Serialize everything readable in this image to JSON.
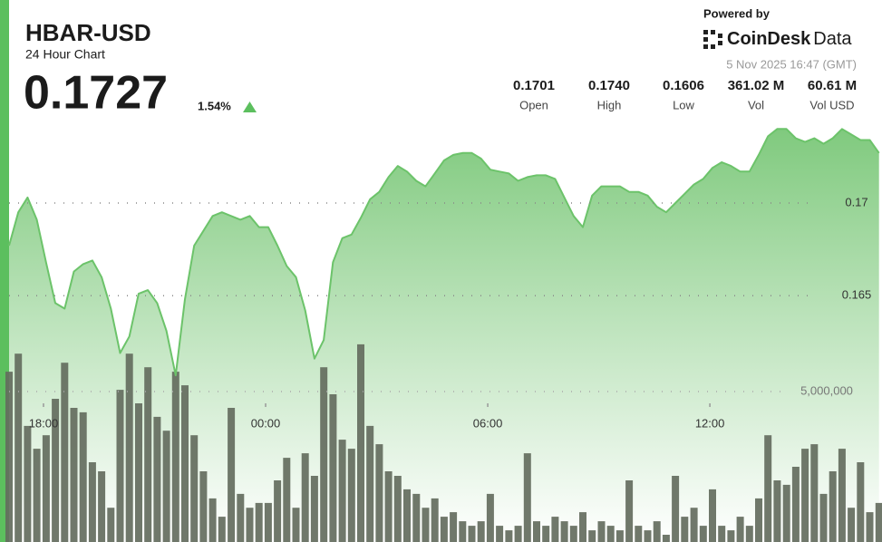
{
  "header": {
    "symbol": "HBAR-USD",
    "subtitle": "24 Hour Chart",
    "price": "0.1727",
    "change": "1.54%",
    "powered_by": "Powered by",
    "brand": "CoinDesk",
    "brand_suffix": "Data",
    "timestamp": "5 Nov 2025 16:47 (GMT)",
    "stats": [
      {
        "value": "0.1701",
        "label": "Open"
      },
      {
        "value": "0.1740",
        "label": "High"
      },
      {
        "value": "0.1606",
        "label": "Low"
      },
      {
        "value": "361.02 M",
        "label": "Vol"
      },
      {
        "value": "60.61 M",
        "label": "Vol USD"
      }
    ]
  },
  "chart_data": {
    "type": "line",
    "x": [
      17.07,
      17.32,
      17.57,
      17.82,
      18.07,
      18.32,
      18.57,
      18.82,
      19.07,
      19.32,
      19.57,
      19.82,
      20.07,
      20.32,
      20.57,
      20.82,
      21.07,
      21.32,
      21.57,
      21.82,
      22.07,
      22.32,
      22.57,
      22.82,
      23.07,
      23.32,
      23.57,
      23.82,
      24.07,
      24.32,
      24.57,
      24.82,
      25.07,
      25.32,
      25.57,
      25.82,
      26.07,
      26.32,
      26.57,
      26.82,
      27.07,
      27.32,
      27.57,
      27.82,
      28.07,
      28.32,
      28.57,
      28.82,
      29.07,
      29.32,
      29.57,
      29.82,
      30.07,
      30.32,
      30.57,
      30.82,
      31.07,
      31.32,
      31.57,
      31.82,
      32.07,
      32.32,
      32.57,
      32.82,
      33.07,
      33.32,
      33.57,
      33.82,
      34.07,
      34.32,
      34.57,
      34.82,
      35.07,
      35.32,
      35.57,
      35.82,
      36.07,
      36.32,
      36.57,
      36.82,
      37.07,
      37.32,
      37.57,
      37.82,
      38.07,
      38.32,
      38.57,
      38.82,
      39.07,
      39.32,
      39.57,
      39.82,
      40.07,
      40.32,
      40.57
    ],
    "xlim": [
      17.07,
      40.65
    ],
    "xticks": [
      {
        "value": 18,
        "label": "18:00"
      },
      {
        "value": 24,
        "label": "00:00"
      },
      {
        "value": 30,
        "label": "06:00"
      },
      {
        "value": 36,
        "label": "12:00"
      }
    ],
    "ylim": [
      0.1517,
      0.1746
    ],
    "yticks": [
      0.165,
      0.17
    ],
    "y2lim": [
      0,
      14100000
    ],
    "y2ticks": [
      {
        "value": 5000000,
        "label": "5,000,000"
      }
    ],
    "grid": true,
    "series": [
      {
        "color": "#6cc36a",
        "values": [
          0.1677,
          0.1695,
          0.1703,
          0.1691,
          0.1668,
          0.1646,
          0.1643,
          0.1663,
          0.1667,
          0.1669,
          0.166,
          0.1643,
          0.1619,
          0.1628,
          0.1651,
          0.1653,
          0.1646,
          0.1631,
          0.1607,
          0.1648,
          0.1677,
          0.1685,
          0.1693,
          0.1695,
          0.1693,
          0.1691,
          0.1693,
          0.1687,
          0.1687,
          0.1677,
          0.1666,
          0.166,
          0.1642,
          0.1616,
          0.1626,
          0.1668,
          0.1681,
          0.1683,
          0.1692,
          0.1702,
          0.1706,
          0.1714,
          0.172,
          0.1717,
          0.1712,
          0.1709,
          0.1716,
          0.1723,
          0.1726,
          0.1727,
          0.1727,
          0.1724,
          0.1718,
          0.1717,
          0.1716,
          0.1712,
          0.1714,
          0.1715,
          0.1715,
          0.1713,
          0.1703,
          0.1693,
          0.1687,
          0.1704,
          0.1709,
          0.1709,
          0.1709,
          0.1706,
          0.1706,
          0.1704,
          0.1698,
          0.1695,
          0.17,
          0.1705,
          0.171,
          0.1713,
          0.1719,
          0.1722,
          0.172,
          0.1717,
          0.1717,
          0.1726,
          0.1736,
          0.174,
          0.174,
          0.1735,
          0.1733,
          0.1735,
          0.1732,
          0.1735,
          0.174,
          0.1737,
          0.1734,
          0.1734,
          0.1727
        ]
      },
      {
        "type": "bar",
        "axis": "y2",
        "color": "#646d5e",
        "values": [
          5660000,
          6260000,
          3860000,
          3100000,
          3550000,
          4760000,
          5960000,
          4460000,
          4310000,
          2650000,
          2350000,
          1140000,
          5060000,
          6260000,
          4610000,
          5810000,
          4160000,
          3700000,
          5660000,
          5210000,
          3550000,
          2350000,
          1450000,
          840000,
          4460000,
          1600000,
          1140000,
          1300000,
          1300000,
          2050000,
          2800000,
          1140000,
          2950000,
          2200000,
          5810000,
          4910000,
          3400000,
          3100000,
          6570000,
          3860000,
          3250000,
          2350000,
          2200000,
          1750000,
          1600000,
          1140000,
          1450000,
          840000,
          990000,
          690000,
          540000,
          690000,
          1600000,
          540000,
          390000,
          540000,
          2950000,
          690000,
          540000,
          840000,
          690000,
          540000,
          990000,
          390000,
          690000,
          540000,
          390000,
          2050000,
          540000,
          390000,
          690000,
          240000,
          2200000,
          840000,
          1140000,
          540000,
          1750000,
          540000,
          390000,
          840000,
          540000,
          1450000,
          3550000,
          2050000,
          1900000,
          2500000,
          3100000,
          3250000,
          1600000,
          2350000,
          3100000,
          1140000,
          2650000,
          990000,
          1300000
        ]
      }
    ]
  }
}
